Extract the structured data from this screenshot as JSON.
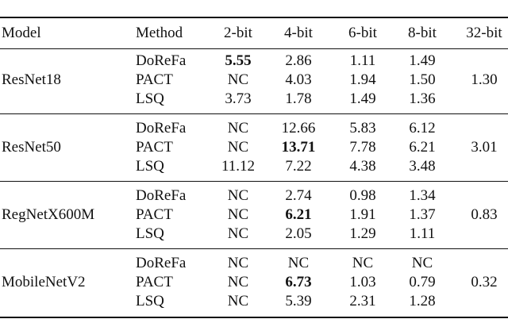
{
  "table": {
    "columns": [
      "Model",
      "Method",
      "2-bit",
      "4-bit",
      "6-bit",
      "8-bit",
      "32-bit"
    ],
    "groups": [
      {
        "model": "ResNet18",
        "full": "1.30",
        "rows": [
          {
            "method": "DoReFa",
            "values": [
              "5.55",
              "2.86",
              "1.11",
              "1.49"
            ],
            "bold": [
              0
            ]
          },
          {
            "method": "PACT",
            "values": [
              "NC",
              "4.03",
              "1.94",
              "1.50"
            ],
            "bold": []
          },
          {
            "method": "LSQ",
            "values": [
              "3.73",
              "1.78",
              "1.49",
              "1.36"
            ],
            "bold": []
          }
        ]
      },
      {
        "model": "ResNet50",
        "full": "3.01",
        "rows": [
          {
            "method": "DoReFa",
            "values": [
              "NC",
              "12.66",
              "5.83",
              "6.12"
            ],
            "bold": []
          },
          {
            "method": "PACT",
            "values": [
              "NC",
              "13.71",
              "7.78",
              "6.21"
            ],
            "bold": [
              1
            ]
          },
          {
            "method": "LSQ",
            "values": [
              "11.12",
              "7.22",
              "4.38",
              "3.48"
            ],
            "bold": []
          }
        ]
      },
      {
        "model": "RegNetX600M",
        "full": "0.83",
        "rows": [
          {
            "method": "DoReFa",
            "values": [
              "NC",
              "2.74",
              "0.98",
              "1.34"
            ],
            "bold": []
          },
          {
            "method": "PACT",
            "values": [
              "NC",
              "6.21",
              "1.91",
              "1.37"
            ],
            "bold": [
              1
            ]
          },
          {
            "method": "LSQ",
            "values": [
              "NC",
              "2.05",
              "1.29",
              "1.11"
            ],
            "bold": []
          }
        ]
      },
      {
        "model": "MobileNetV2",
        "full": "0.32",
        "rows": [
          {
            "method": "DoReFa",
            "values": [
              "NC",
              "NC",
              "NC",
              "NC"
            ],
            "bold": []
          },
          {
            "method": "PACT",
            "values": [
              "NC",
              "6.73",
              "1.03",
              "0.79"
            ],
            "bold": [
              1
            ]
          },
          {
            "method": "LSQ",
            "values": [
              "NC",
              "5.39",
              "2.31",
              "1.28"
            ],
            "bold": []
          }
        ]
      }
    ]
  }
}
